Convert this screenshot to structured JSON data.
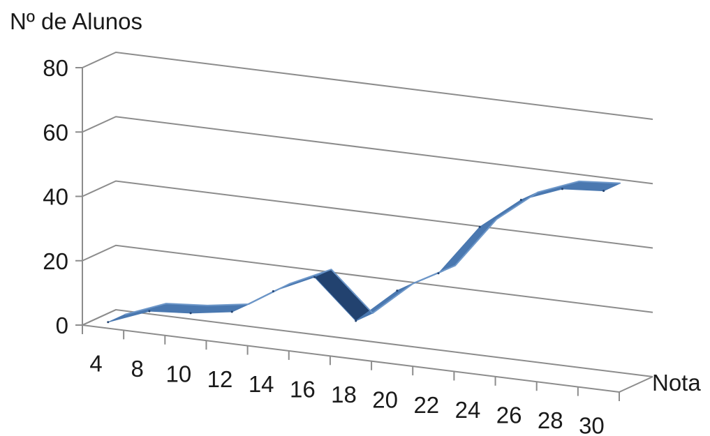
{
  "chart_data": {
    "type": "line",
    "style": "3d-ribbon",
    "ylabel": "Nº de Alunos",
    "xlabel": "Nota",
    "ylim": [
      0,
      80
    ],
    "yticks": [
      0,
      20,
      40,
      60,
      80
    ],
    "categories": [
      "4",
      "8",
      "10",
      "12",
      "14",
      "16",
      "18",
      "20",
      "22",
      "24",
      "26",
      "28",
      "30"
    ],
    "series": [
      {
        "values": [
          1,
          6,
          7,
          9,
          17,
          23,
          11,
          22,
          29,
          45,
          55,
          60,
          61
        ]
      }
    ],
    "grid": true,
    "colors": {
      "series": "#4a78b0",
      "series_dark": "#22426f",
      "grid": "#8c8c8c",
      "text": "#1a1a1a"
    }
  }
}
